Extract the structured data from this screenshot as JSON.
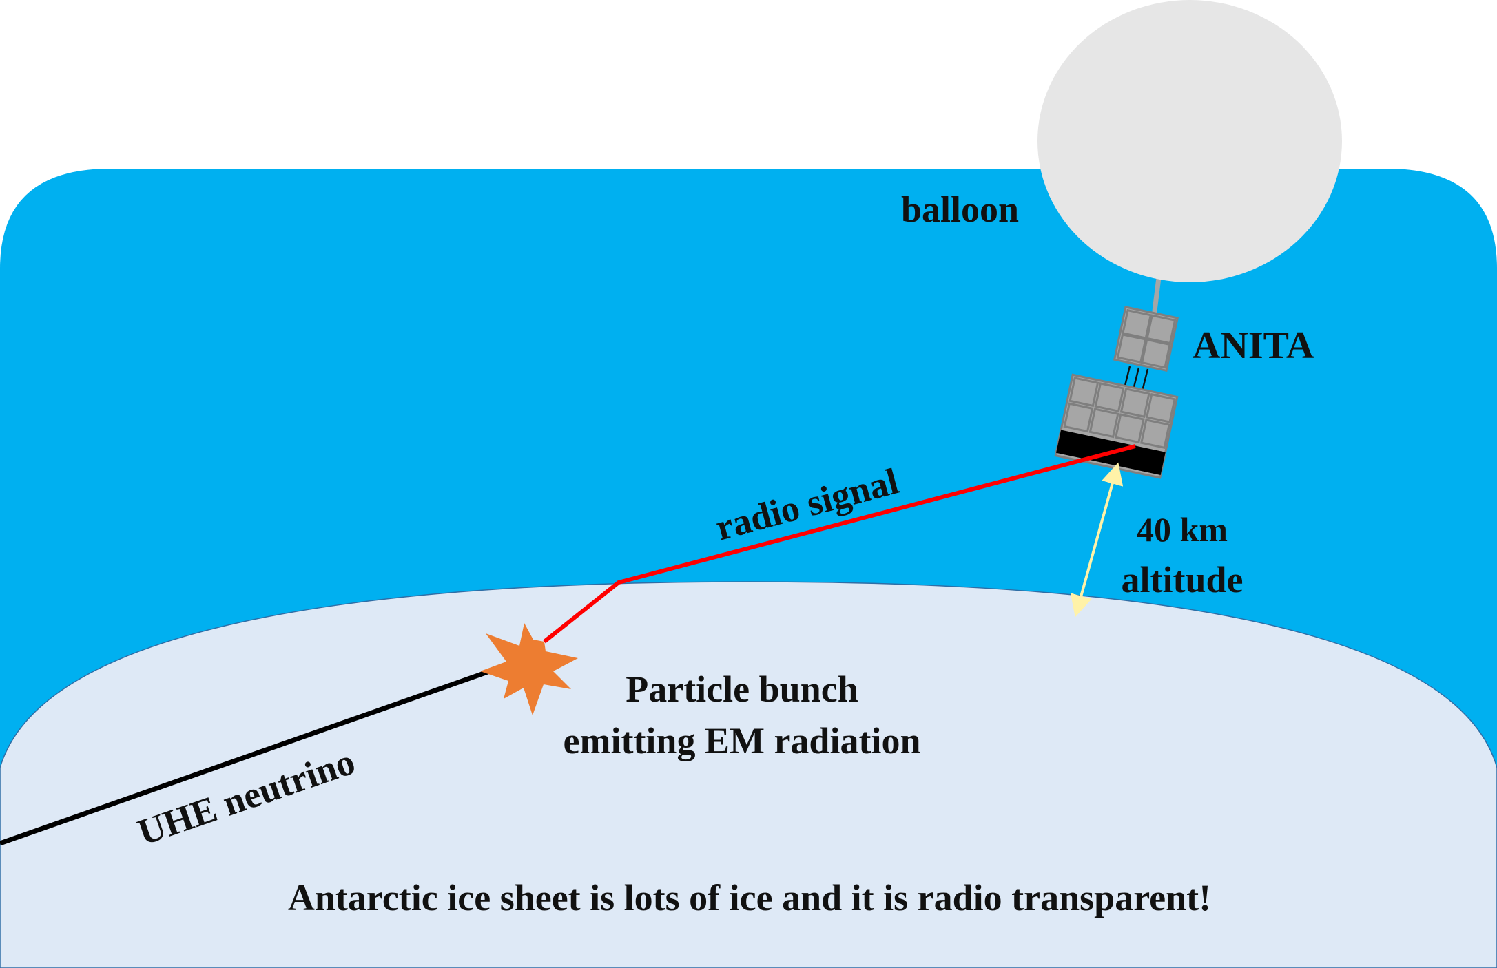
{
  "labels": {
    "balloon": "balloon",
    "anita": "ANITA",
    "radio_signal": "radio signal",
    "altitude_line1": "40 km",
    "altitude_line2": "altitude",
    "particle_line1": "Particle bunch",
    "particle_line2": "emitting EM radiation",
    "neutrino": "UHE neutrino",
    "caption": "Antarctic ice sheet is lots of  ice and it is radio transparent!"
  },
  "colors": {
    "sky": "#00b0f0",
    "ice": "#dee9f6",
    "balloon": "#e6e6e6",
    "panel": "#a6a6a6",
    "radio_signal": "#ff0000",
    "neutrino": "#000000",
    "burst": "#ed7d31",
    "altitude_arrow": "#fff2a8"
  }
}
